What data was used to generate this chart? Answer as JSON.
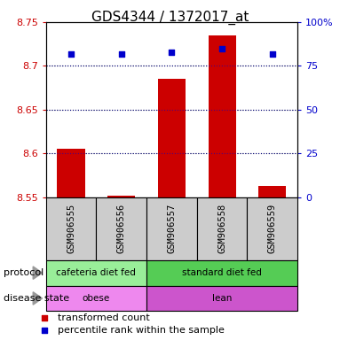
{
  "title": "GDS4344 / 1372017_at",
  "samples": [
    "GSM906555",
    "GSM906556",
    "GSM906557",
    "GSM906558",
    "GSM906559"
  ],
  "transformed_counts": [
    8.605,
    8.552,
    8.685,
    8.735,
    8.563
  ],
  "percentile_ranks": [
    82,
    82,
    83,
    85,
    82
  ],
  "ylim_left": [
    8.55,
    8.75
  ],
  "ylim_right": [
    0,
    100
  ],
  "yticks_left": [
    8.55,
    8.6,
    8.65,
    8.7,
    8.75
  ],
  "ytick_labels_left": [
    "8.55",
    "8.6",
    "8.65",
    "8.7",
    "8.75"
  ],
  "yticks_right": [
    0,
    25,
    50,
    75,
    100
  ],
  "ytick_labels_right": [
    "0",
    "25",
    "50",
    "75",
    "100%"
  ],
  "grid_lines": [
    8.6,
    8.65,
    8.7
  ],
  "bar_color": "#cc0000",
  "dot_color": "#0000cc",
  "bar_bottom": 8.55,
  "bar_width": 0.55,
  "protocol_groups": [
    {
      "label": "cafeteria diet fed",
      "start": 0,
      "end": 2,
      "color": "#99ee99"
    },
    {
      "label": "standard diet fed",
      "start": 2,
      "end": 5,
      "color": "#55cc55"
    }
  ],
  "disease_groups": [
    {
      "label": "obese",
      "start": 0,
      "end": 2,
      "color": "#ee88ee"
    },
    {
      "label": "lean",
      "start": 2,
      "end": 5,
      "color": "#cc55cc"
    }
  ],
  "protocol_label": "protocol",
  "disease_label": "disease state",
  "legend_red_label": "transformed count",
  "legend_blue_label": "percentile rank within the sample",
  "axis_label_color_left": "#cc0000",
  "axis_label_color_right": "#0000cc",
  "sample_box_color": "#cccccc",
  "arrow_color": "#999999"
}
